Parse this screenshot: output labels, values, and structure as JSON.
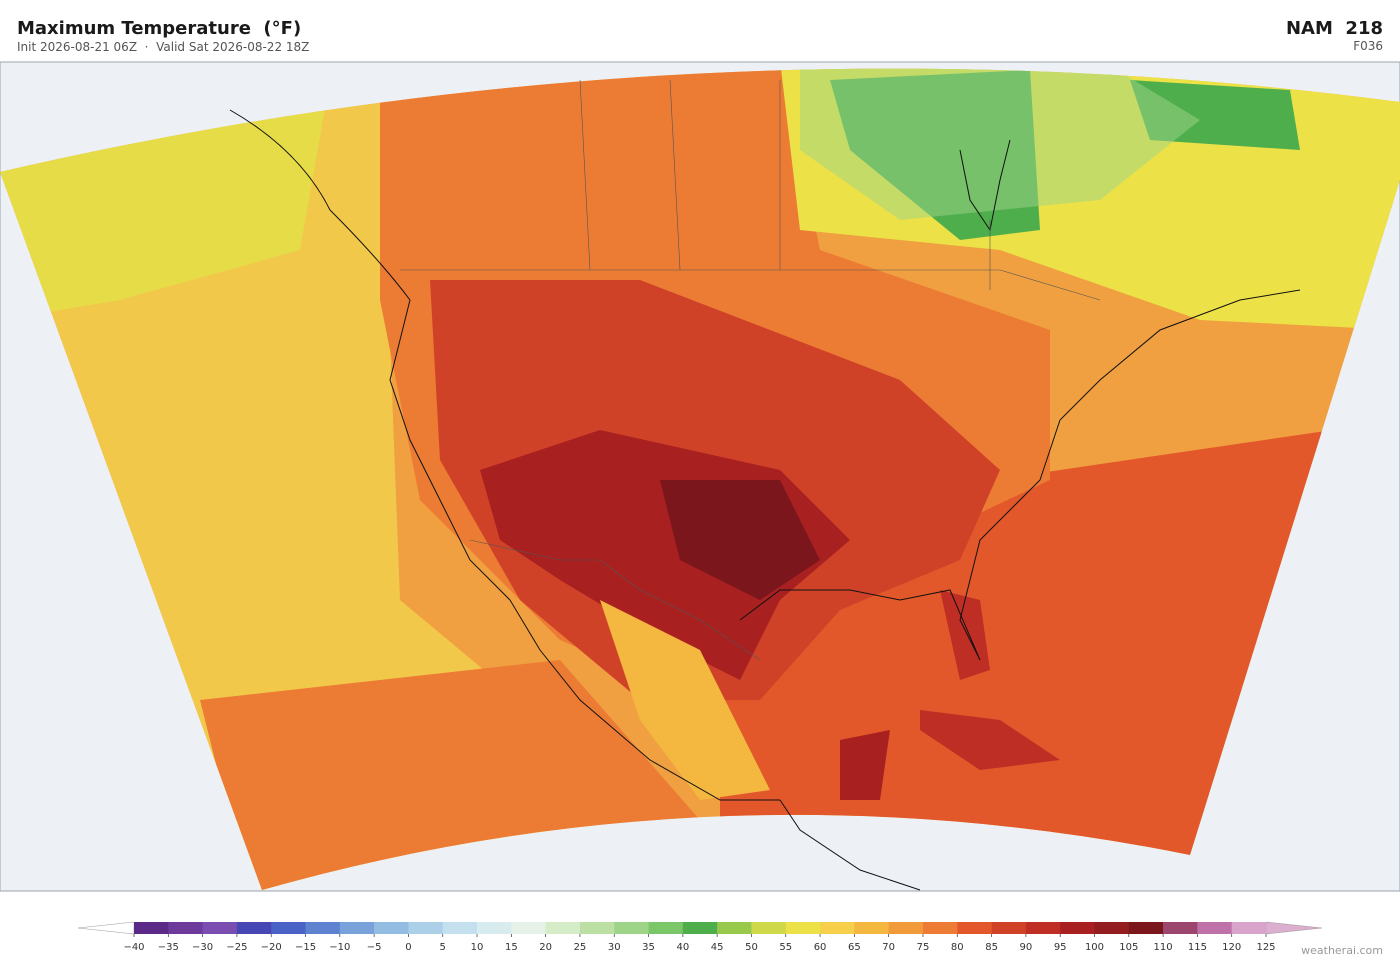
{
  "header": {
    "title": "Maximum Temperature  (°F)",
    "subtitle": "Init 2026-08-21 06Z  ·  Valid Sat 2026-08-22 18Z",
    "model": "NAM  218",
    "forecast_hour": "F036"
  },
  "colorbar": {
    "under_color": "#ffffff",
    "over_color": "#dcaed0",
    "colors": [
      "#5b2a86",
      "#6d3a9c",
      "#7a4eb0",
      "#4646b4",
      "#4a62c6",
      "#5e82d0",
      "#7aa2da",
      "#92bce2",
      "#acd0e8",
      "#c4e0ee",
      "#d8ecf0",
      "#e6f2e8",
      "#d4ecc8",
      "#bce0a4",
      "#9ed488",
      "#7cc66a",
      "#4eae4c",
      "#98c84c",
      "#cdd94a",
      "#ece248",
      "#f6d04a",
      "#f4b840",
      "#f09a3a",
      "#ec7c34",
      "#e2582a",
      "#d04228",
      "#be2e24",
      "#a82020",
      "#921c1e",
      "#7a161c",
      "#9c466e",
      "#be72a8",
      "#d8a4cc"
    ],
    "ticks": [
      {
        "value": -40,
        "label": "−40"
      },
      {
        "value": -35,
        "label": "−35"
      },
      {
        "value": -30,
        "label": "−30"
      },
      {
        "value": -25,
        "label": "−25"
      },
      {
        "value": -20,
        "label": "−20"
      },
      {
        "value": -15,
        "label": "−15"
      },
      {
        "value": -10,
        "label": "−10"
      },
      {
        "value": -5,
        "label": "−5"
      },
      0,
      5,
      10,
      15,
      20,
      25,
      30,
      35,
      40,
      45,
      50,
      55,
      60,
      65,
      70,
      75,
      80,
      85,
      90,
      95,
      100,
      105,
      110,
      115,
      120,
      125
    ]
  },
  "watermark": "weatherai.com"
}
